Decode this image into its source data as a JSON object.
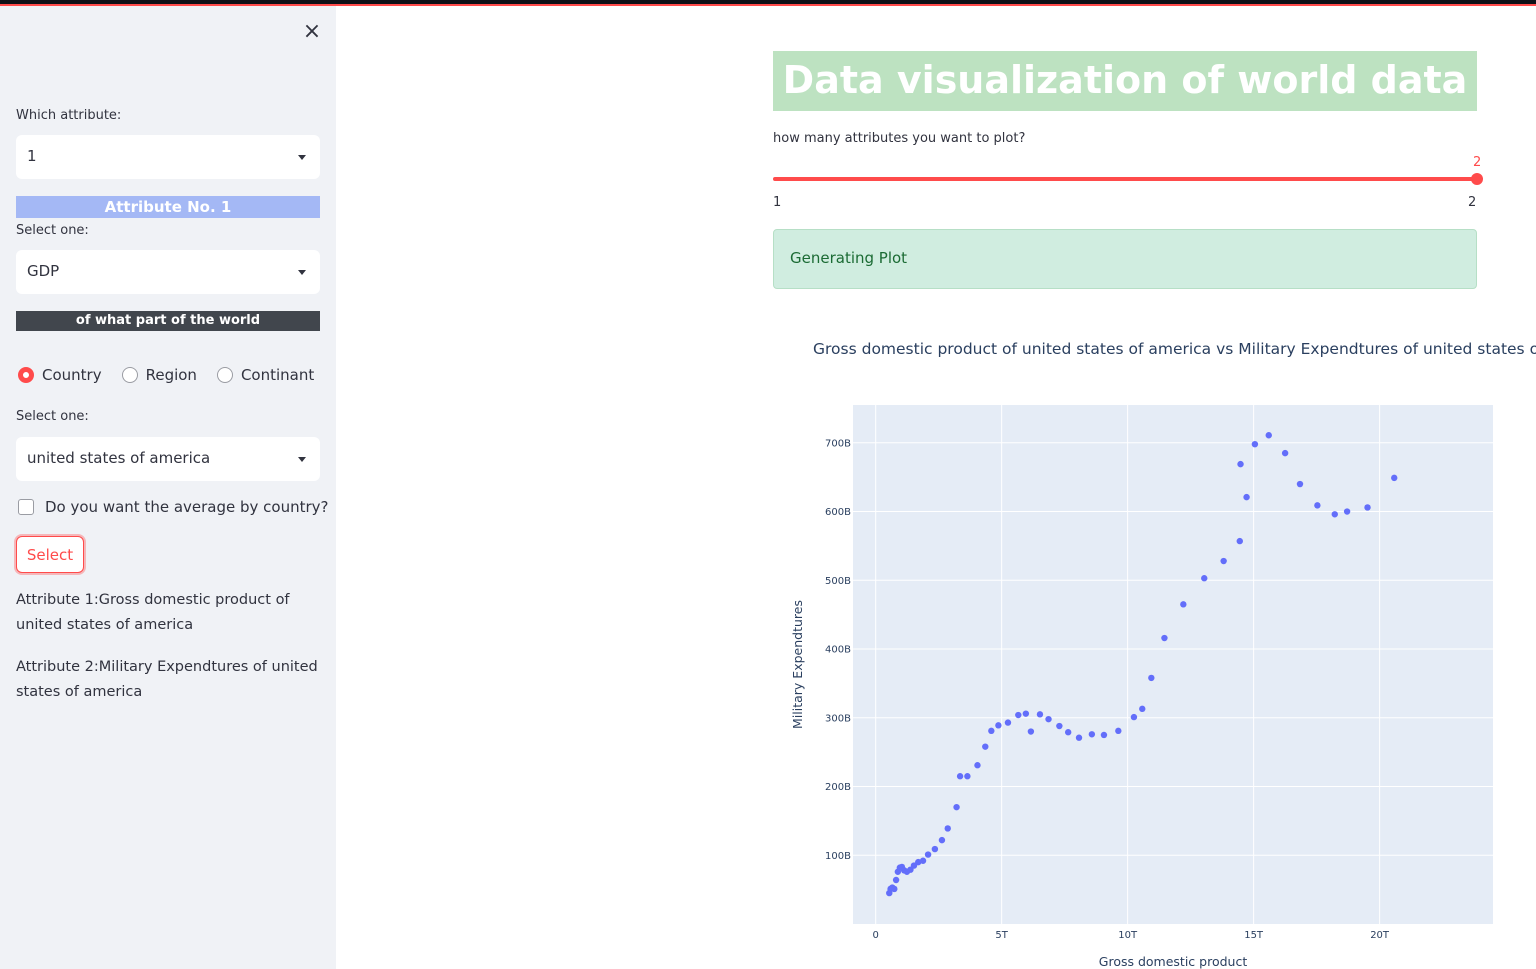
{
  "sidebar": {
    "close_icon": "×",
    "attr_label": "Which attribute:",
    "attr_value": "1",
    "attr_banner": "Attribute No. 1",
    "select_one_label": "Select one:",
    "metric_value": "GDP",
    "world_banner": "of what part of the world",
    "radio_options": [
      "Country",
      "Region",
      "Continant"
    ],
    "radio_selected": "Country",
    "select_one_label2": "Select one:",
    "country_value": "united states of america",
    "average_checkbox": "Do you want the average by country?",
    "select_button": "Select",
    "attribute1_text": "Attribute 1:Gross domestic product of united states of america",
    "attribute2_text": "Attribute 2:Military Expendtures of united states of america"
  },
  "main": {
    "title": "Data visualization of world data",
    "slider_label": "how many attributes you want to plot?",
    "slider_value": "2",
    "slider_min": "1",
    "slider_max": "2",
    "status_text": "Generating Plot",
    "plot_title": "Gross domestic product of united states of america vs Military Expendtures of united states of america"
  },
  "chart_data": {
    "type": "scatter",
    "title": "Gross domestic product of united states of america vs Military Expendtures of united states of america",
    "xlabel": "Gross domestic product",
    "ylabel": "Military Expendtures",
    "x_unit": "trillion USD",
    "y_unit": "billion USD",
    "xlim": [
      -0.9,
      24.5
    ],
    "ylim": [
      0,
      755
    ],
    "x_ticks": [
      "0",
      "5T",
      "10T",
      "15T",
      "20T"
    ],
    "x_tick_values": [
      0,
      5,
      10,
      15,
      20
    ],
    "y_ticks": [
      "100B",
      "200B",
      "300B",
      "400B",
      "500B",
      "600B",
      "700B"
    ],
    "y_tick_values": [
      100,
      200,
      300,
      400,
      500,
      600,
      700
    ],
    "grid": true,
    "marker_color": "#636efa",
    "points": [
      [
        0.54,
        45
      ],
      [
        0.59,
        51
      ],
      [
        0.66,
        53
      ],
      [
        0.74,
        51
      ],
      [
        0.81,
        64
      ],
      [
        0.88,
        76
      ],
      [
        0.96,
        82
      ],
      [
        1.04,
        83
      ],
      [
        1.13,
        78
      ],
      [
        1.24,
        76
      ],
      [
        1.38,
        79
      ],
      [
        1.52,
        85
      ],
      [
        1.69,
        90
      ],
      [
        1.88,
        92
      ],
      [
        2.08,
        101
      ],
      [
        2.35,
        109
      ],
      [
        2.63,
        122
      ],
      [
        2.86,
        139
      ],
      [
        3.21,
        170
      ],
      [
        3.35,
        215
      ],
      [
        3.64,
        215
      ],
      [
        4.04,
        231
      ],
      [
        4.35,
        258
      ],
      [
        4.59,
        281
      ],
      [
        4.87,
        289
      ],
      [
        5.25,
        293
      ],
      [
        5.66,
        304
      ],
      [
        5.96,
        306
      ],
      [
        6.16,
        280
      ],
      [
        6.52,
        305
      ],
      [
        6.86,
        298
      ],
      [
        7.29,
        288
      ],
      [
        7.64,
        279
      ],
      [
        8.07,
        271
      ],
      [
        8.58,
        276
      ],
      [
        9.06,
        275
      ],
      [
        9.63,
        281
      ],
      [
        10.25,
        301
      ],
      [
        10.58,
        313
      ],
      [
        10.94,
        358
      ],
      [
        11.46,
        416
      ],
      [
        12.21,
        465
      ],
      [
        13.04,
        503
      ],
      [
        13.81,
        528
      ],
      [
        14.45,
        557
      ],
      [
        14.48,
        669
      ],
      [
        14.72,
        621
      ],
      [
        15.05,
        698
      ],
      [
        15.6,
        711
      ],
      [
        16.25,
        685
      ],
      [
        16.84,
        640
      ],
      [
        17.53,
        609
      ],
      [
        18.22,
        596
      ],
      [
        18.71,
        600
      ],
      [
        19.52,
        606
      ],
      [
        20.58,
        649
      ]
    ]
  }
}
